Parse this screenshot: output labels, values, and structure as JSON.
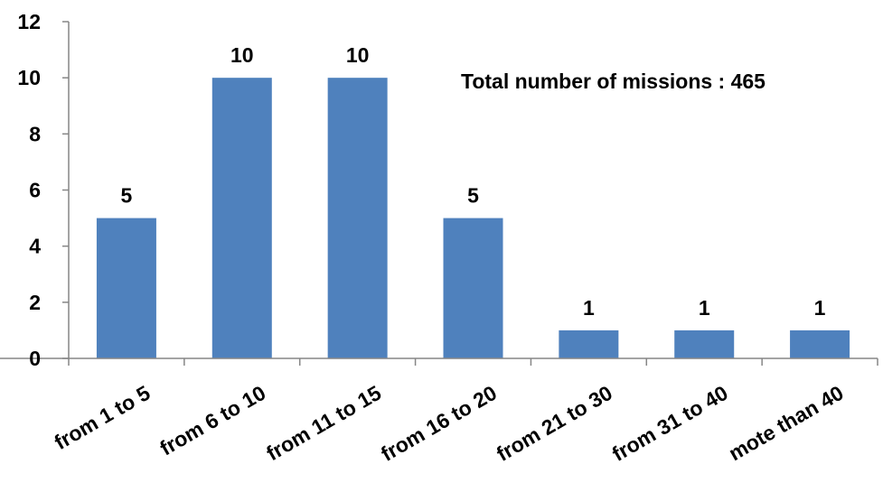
{
  "chart_data": {
    "type": "bar",
    "categories": [
      "from 1 to 5",
      "from 6 to 10",
      "from 11 to 15",
      "from 16 to 20",
      "from 21 to 30",
      "from 31 to 40",
      "mote than 40"
    ],
    "values": [
      5,
      10,
      10,
      5,
      1,
      1,
      1
    ],
    "ylim": [
      0,
      12
    ],
    "yticks": [
      0,
      2,
      4,
      6,
      8,
      10,
      12
    ],
    "ytick_labels": [
      "0",
      "2",
      "4",
      "6",
      "8",
      "10",
      "12"
    ],
    "data_labels": [
      "5",
      "10",
      "10",
      "5",
      "1",
      "1",
      "1"
    ],
    "annotation": "Total number of missions : 465",
    "bar_color": "#4F81BD",
    "axis_color": "#868686",
    "grid": false,
    "legend": "none"
  }
}
